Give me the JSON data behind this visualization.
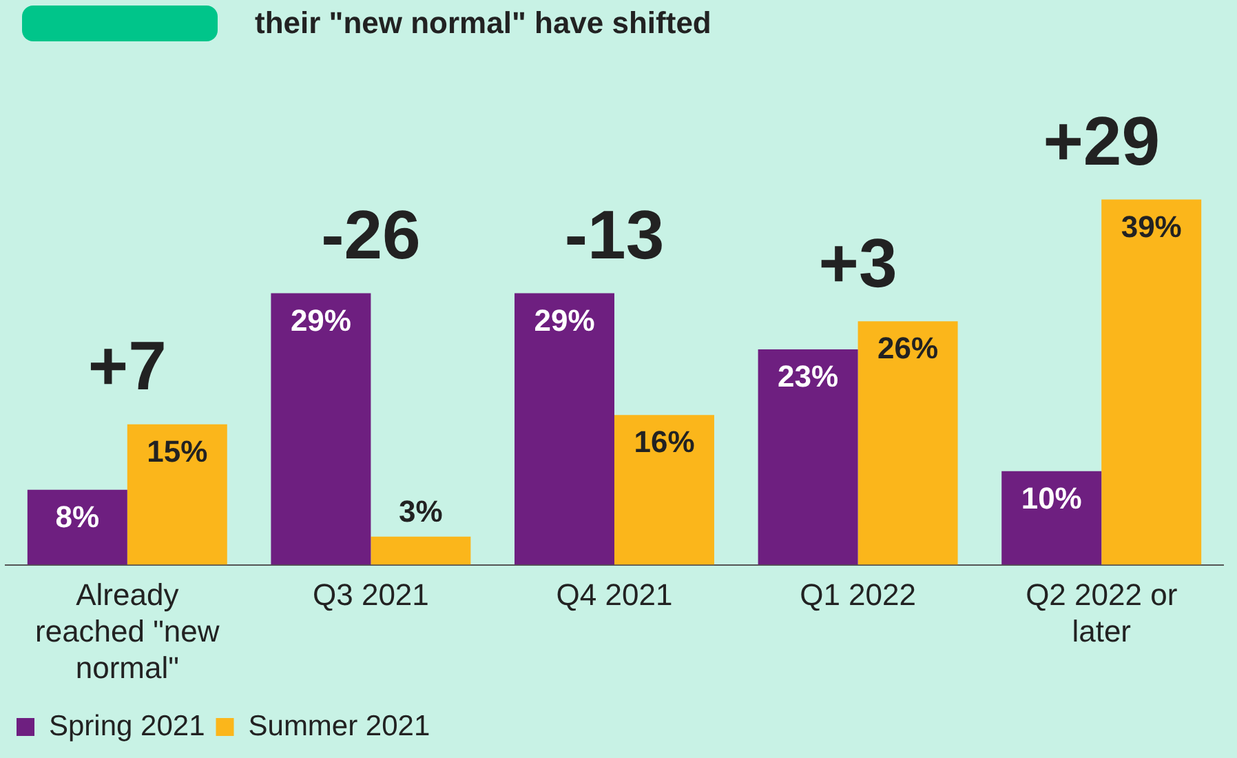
{
  "chart_data": {
    "type": "bar",
    "title": "their \"new normal\" have shifted",
    "categories": [
      "Already reached \"new normal\"",
      "Q3 2021",
      "Q4 2021",
      "Q1 2022",
      "Q2 2022 or later"
    ],
    "series": [
      {
        "name": "Spring 2021",
        "color": "#6e1f80",
        "values": [
          8,
          29,
          29,
          23,
          10
        ],
        "value_labels": [
          "8%",
          "29%",
          "29%",
          "23%",
          "10%"
        ]
      },
      {
        "name": "Summer 2021",
        "color": "#fbb61b",
        "values": [
          15,
          3,
          16,
          26,
          39
        ],
        "value_labels": [
          "15%",
          "3%",
          "16%",
          "26%",
          "39%"
        ]
      }
    ],
    "annotations": [
      {
        "text": "+7",
        "x": "Already reached \"new normal\"",
        "y": 15
      },
      {
        "text": "-26",
        "x": "Q3 2021",
        "y": 29
      },
      {
        "text": "-13",
        "x": "Q4 2021",
        "y": 29
      },
      {
        "text": "+3",
        "x": "Q1 2022",
        "y": 26
      },
      {
        "text": "+29",
        "x": "Q2 2022 or later",
        "y": 39
      }
    ],
    "legend": "bottom left",
    "grid": false,
    "tick_labels": "x"
  }
}
